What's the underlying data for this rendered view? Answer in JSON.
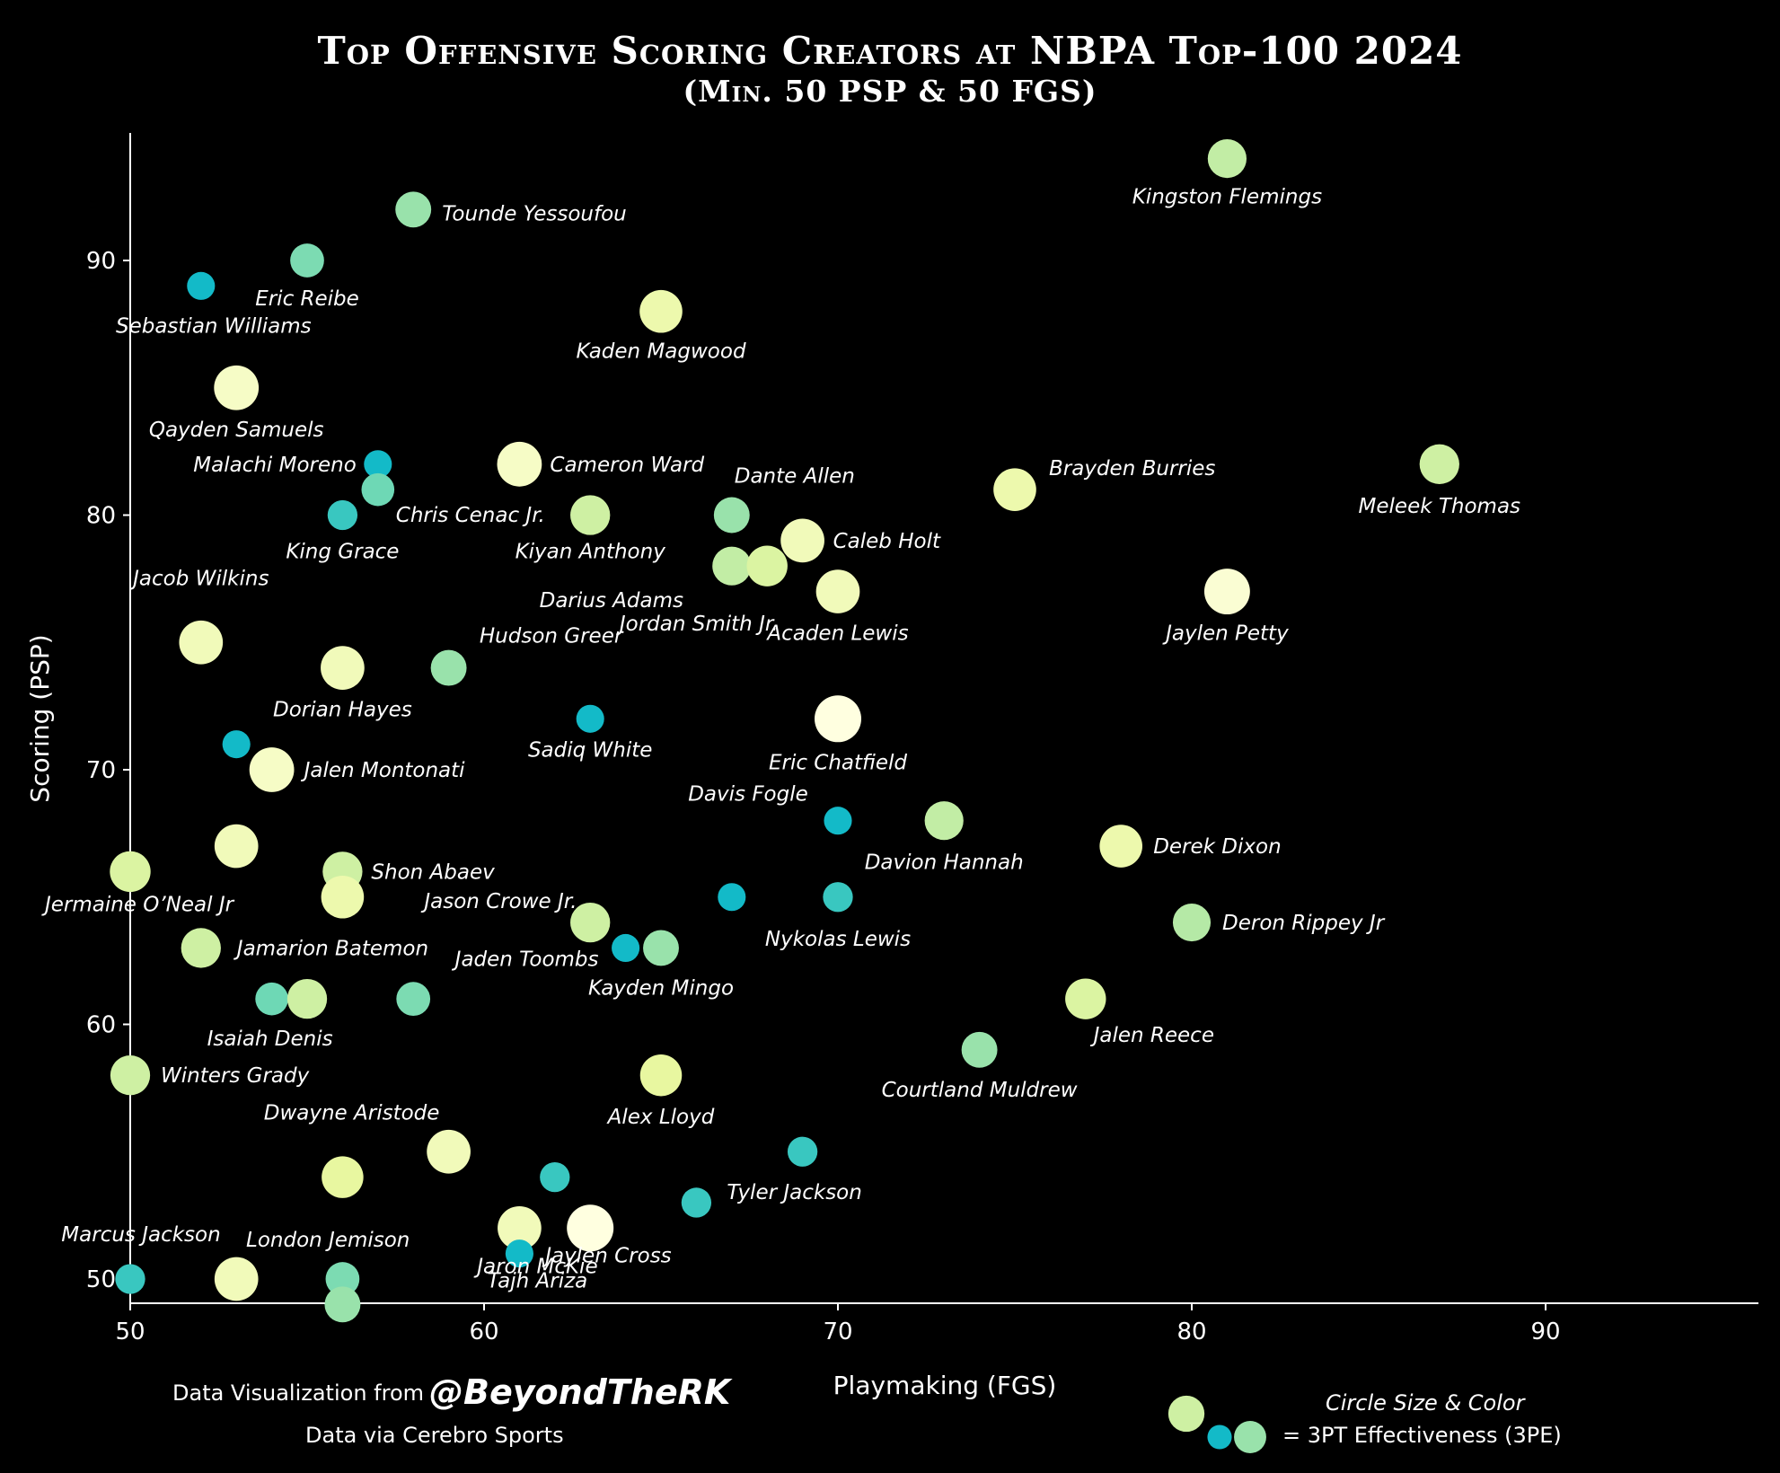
{
  "chart_data": {
    "type": "scatter",
    "title": "Top Offensive Scoring Creators at NBPA Top-100 2024",
    "subtitle": "(Min. 50 PSP & 50 FGS)",
    "xlabel": "Playmaking (FGS)",
    "ylabel": "Scoring (PSP)",
    "xlim": [
      49,
      95
    ],
    "ylim": [
      49,
      95
    ],
    "xticks": [
      50,
      60,
      70,
      80,
      90
    ],
    "yticks": [
      50,
      60,
      70,
      80,
      90
    ],
    "grid": false,
    "size_color_encoding": "3PT Effectiveness (3PE)",
    "colorscale": [
      "#00b3cc",
      "#5fd4b8",
      "#a8e6a8",
      "#e8f7a0",
      "#ffffe0"
    ],
    "points": [
      {
        "name": "Kingston Flemings",
        "x": 81,
        "y": 94,
        "tpe": 0.6
      },
      {
        "name": "Tounde Yessoufou",
        "x": 58,
        "y": 92,
        "tpe": 0.45
      },
      {
        "name": "Eric Reibe",
        "x": 55,
        "y": 90,
        "tpe": 0.35
      },
      {
        "name": "Sebastian Williams",
        "x": 52,
        "y": 89,
        "tpe": 0.05
      },
      {
        "name": "Kaden Magwood",
        "x": 65,
        "y": 88,
        "tpe": 0.8
      },
      {
        "name": "Qayden Samuels",
        "x": 53,
        "y": 85,
        "tpe": 0.9
      },
      {
        "name": "Malachi Moreno",
        "x": 57,
        "y": 82,
        "tpe": 0.05
      },
      {
        "name": "Cameron Ward",
        "x": 61,
        "y": 82,
        "tpe": 0.9
      },
      {
        "name": "Chris Cenac Jr.",
        "x": 57,
        "y": 81,
        "tpe": 0.3
      },
      {
        "name": "King Grace",
        "x": 56,
        "y": 80,
        "tpe": 0.15
      },
      {
        "name": "Kiyan Anthony",
        "x": 63,
        "y": 80,
        "tpe": 0.65
      },
      {
        "name": "Dante Allen",
        "x": 67,
        "y": 80,
        "tpe": 0.45
      },
      {
        "name": "Caleb Holt",
        "x": 69,
        "y": 79,
        "tpe": 0.85
      },
      {
        "name": "Darius Adams",
        "x": 67,
        "y": 78,
        "tpe": 0.6
      },
      {
        "name": "Jordan Smith Jr.",
        "x": 68,
        "y": 78,
        "tpe": 0.7
      },
      {
        "name": "Acaden Lewis",
        "x": 70,
        "y": 77,
        "tpe": 0.85
      },
      {
        "name": "Brayden Burries",
        "x": 75,
        "y": 81,
        "tpe": 0.8
      },
      {
        "name": "Meleek Thomas",
        "x": 87,
        "y": 82,
        "tpe": 0.65
      },
      {
        "name": "Jaylen Petty",
        "x": 81,
        "y": 77,
        "tpe": 0.95
      },
      {
        "name": "Jacob Wilkins",
        "x": 52,
        "y": 75,
        "tpe": 0.85
      },
      {
        "name": "Dorian Hayes",
        "x": 56,
        "y": 74,
        "tpe": 0.85
      },
      {
        "name": "Hudson Greer",
        "x": 59,
        "y": 74,
        "tpe": 0.45
      },
      {
        "name": "Sadiq White",
        "x": 63,
        "y": 72,
        "tpe": 0.05
      },
      {
        "name": "Eric Chatfield",
        "x": 70,
        "y": 72,
        "tpe": 1.0
      },
      {
        "name": "",
        "x": 53,
        "y": 71,
        "tpe": 0.05
      },
      {
        "name": "Jalen Montonati",
        "x": 54,
        "y": 70,
        "tpe": 0.9
      },
      {
        "name": "Davis Fogle",
        "x": 70,
        "y": 68,
        "tpe": 0.05
      },
      {
        "name": "Davion Hannah",
        "x": 73,
        "y": 68,
        "tpe": 0.6
      },
      {
        "name": "Derek Dixon",
        "x": 78,
        "y": 67,
        "tpe": 0.8
      },
      {
        "name": "",
        "x": 53,
        "y": 67,
        "tpe": 0.85
      },
      {
        "name": "Jermaine O’Neal Jr",
        "x": 50,
        "y": 66,
        "tpe": 0.7
      },
      {
        "name": "Shon Abaev",
        "x": 56,
        "y": 66,
        "tpe": 0.65
      },
      {
        "name": "Jason Crowe Jr.",
        "x": 56,
        "y": 65,
        "tpe": 0.8
      },
      {
        "name": "",
        "x": 67,
        "y": 65,
        "tpe": 0.05
      },
      {
        "name": "Nykolas Lewis",
        "x": 70,
        "y": 65,
        "tpe": 0.15
      },
      {
        "name": "Deron Rippey Jr",
        "x": 80,
        "y": 64,
        "tpe": 0.55
      },
      {
        "name": "",
        "x": 63,
        "y": 64,
        "tpe": 0.65
      },
      {
        "name": "Jamarion Batemon",
        "x": 52,
        "y": 63,
        "tpe": 0.65
      },
      {
        "name": "Jaden Toombs",
        "x": 64,
        "y": 63,
        "tpe": 0.05
      },
      {
        "name": "Kayden Mingo",
        "x": 65,
        "y": 63,
        "tpe": 0.45
      },
      {
        "name": "Isaiah Denis",
        "x": 54,
        "y": 61,
        "tpe": 0.3
      },
      {
        "name": "",
        "x": 55,
        "y": 61,
        "tpe": 0.65
      },
      {
        "name": "",
        "x": 58,
        "y": 61,
        "tpe": 0.35
      },
      {
        "name": "Jalen Reece",
        "x": 77,
        "y": 61,
        "tpe": 0.7
      },
      {
        "name": "Courtland Muldrew",
        "x": 74,
        "y": 59,
        "tpe": 0.45
      },
      {
        "name": "Winters Grady",
        "x": 50,
        "y": 58,
        "tpe": 0.65
      },
      {
        "name": "Alex Lloyd",
        "x": 65,
        "y": 58,
        "tpe": 0.75
      },
      {
        "name": "Dwayne Aristode",
        "x": 59,
        "y": 55,
        "tpe": 0.85
      },
      {
        "name": "",
        "x": 56,
        "y": 54,
        "tpe": 0.75
      },
      {
        "name": "",
        "x": 62,
        "y": 54,
        "tpe": 0.15
      },
      {
        "name": "",
        "x": 69,
        "y": 55,
        "tpe": 0.15
      },
      {
        "name": "Tyler Jackson",
        "x": 66,
        "y": 53,
        "tpe": 0.15
      },
      {
        "name": "Jaylen Cross",
        "x": 63,
        "y": 52,
        "tpe": 1.0
      },
      {
        "name": "Jaron McKie",
        "x": 61,
        "y": 52,
        "tpe": 0.85
      },
      {
        "name": "Tajh Ariza",
        "x": 61,
        "y": 51,
        "tpe": 0.05
      },
      {
        "name": "Marcus Jackson",
        "x": 50,
        "y": 50,
        "tpe": 0.15
      },
      {
        "name": "London Jemison",
        "x": 53,
        "y": 50,
        "tpe": 0.85
      },
      {
        "name": "",
        "x": 56,
        "y": 50,
        "tpe": 0.35
      },
      {
        "name": "",
        "x": 56,
        "y": 49,
        "tpe": 0.45
      }
    ]
  },
  "footer": {
    "credit_prefix": "Data Visualization from",
    "credit_handle": "@BeyondTheRK",
    "source": "Data via Cerebro Sports",
    "legend_title": "Circle Size & Color",
    "legend_text": "= 3PT Effectiveness (3PE)"
  }
}
